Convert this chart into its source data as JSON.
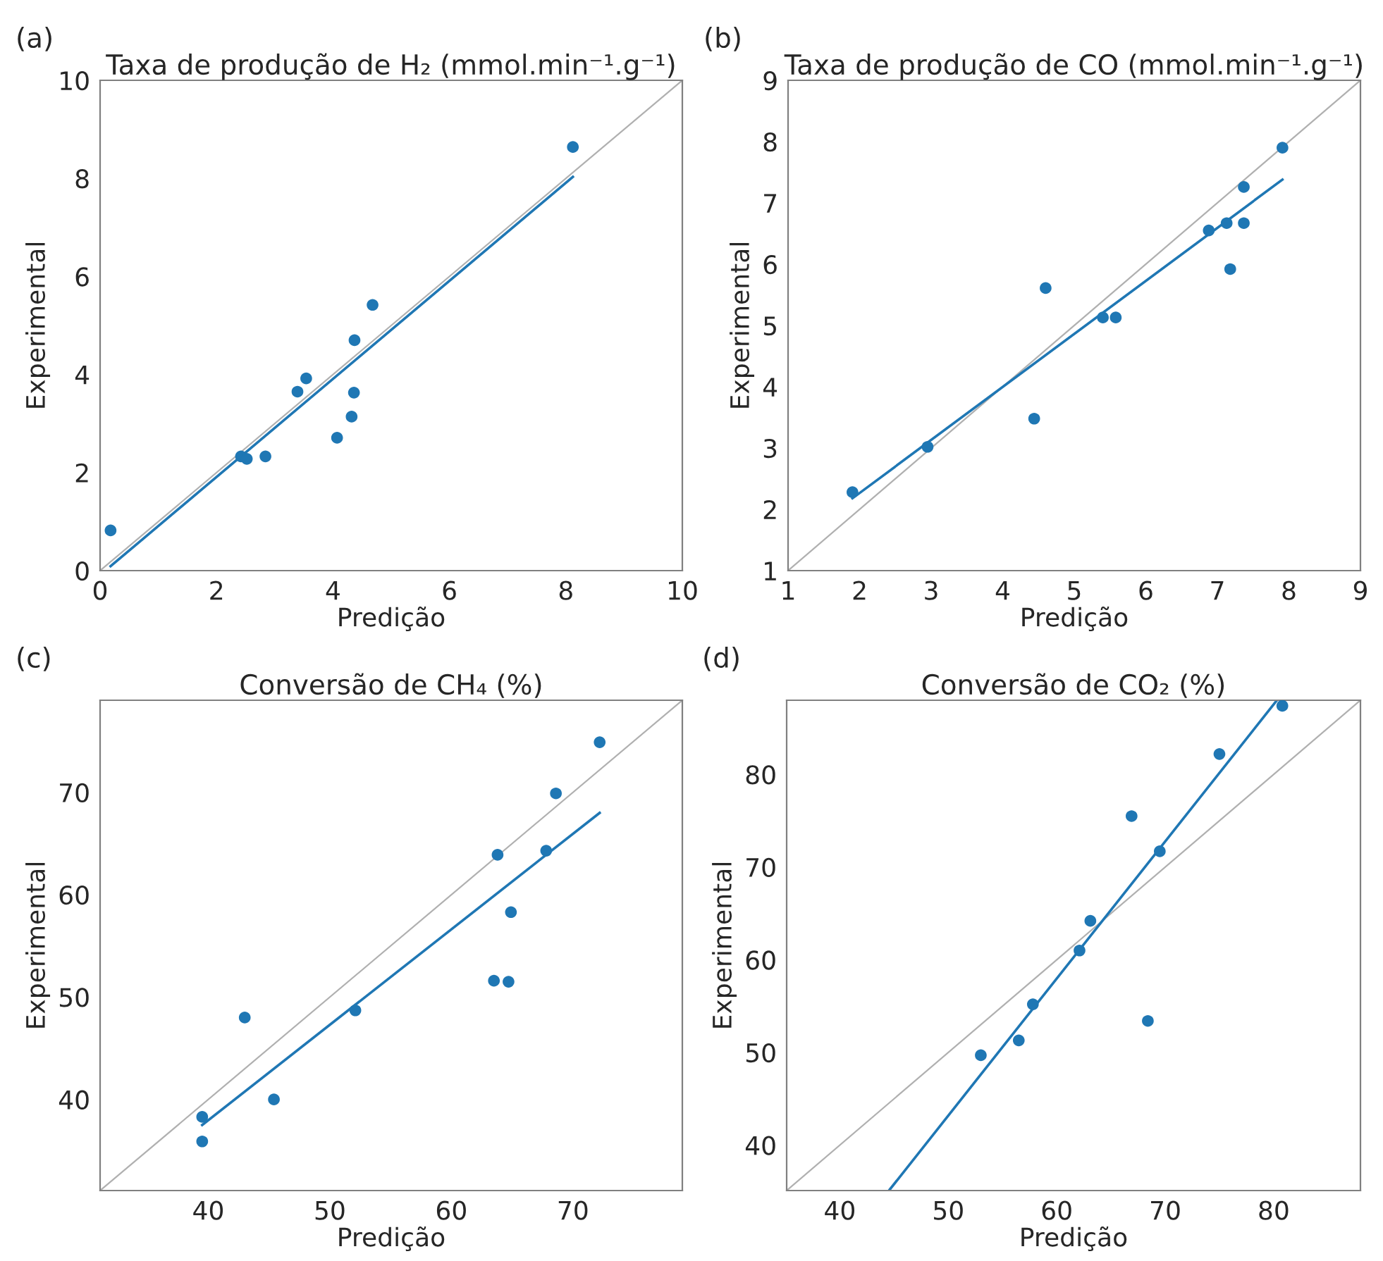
{
  "chart_data": [
    {
      "type": "scatter",
      "title": "Taxa de produção de H₂ (mmol.min⁻¹.g⁻¹)",
      "xlabel": "Predição",
      "ylabel": "Experimental",
      "annotations": [
        "(a)"
      ],
      "xlim": [
        0,
        10
      ],
      "ylim": [
        0,
        10
      ],
      "xticks": [
        0,
        2,
        4,
        6,
        8,
        10
      ],
      "yticks": [
        0,
        2,
        4,
        6,
        8,
        10
      ],
      "grid": false,
      "legend": false,
      "series": [
        {
          "type": "line",
          "color": "#b0b0b0",
          "marker": "none",
          "x": [
            0,
            10
          ],
          "values": [
            0,
            10
          ]
        },
        {
          "type": "line",
          "color": "#1f77b4",
          "marker": "none",
          "x": [
            0.18,
            8.12
          ],
          "values": [
            0.09,
            8.03
          ]
        },
        {
          "color": "#1f77b4",
          "marker": "circle",
          "x": [
            0.18,
            2.42,
            2.52,
            2.84,
            3.39,
            3.54,
            4.07,
            4.32,
            4.36,
            4.37,
            4.68,
            8.12
          ],
          "values": [
            0.82,
            2.33,
            2.28,
            2.33,
            3.65,
            3.92,
            2.71,
            3.14,
            3.63,
            4.7,
            5.42,
            8.64
          ]
        }
      ]
    },
    {
      "type": "scatter",
      "title": "Taxa de produção de CO (mmol.min⁻¹.g⁻¹)",
      "xlabel": "Predição",
      "ylabel": "Experimental",
      "annotations": [
        "(b)"
      ],
      "xlim": [
        1,
        9
      ],
      "ylim": [
        1,
        9
      ],
      "xticks": [
        1,
        2,
        3,
        4,
        5,
        6,
        7,
        8,
        9
      ],
      "yticks": [
        1,
        2,
        3,
        4,
        5,
        6,
        7,
        8,
        9
      ],
      "grid": false,
      "legend": false,
      "series": [
        {
          "type": "line",
          "color": "#b0b0b0",
          "marker": "none",
          "x": [
            1,
            9
          ],
          "values": [
            1,
            9
          ]
        },
        {
          "type": "line",
          "color": "#1f77b4",
          "marker": "none",
          "x": [
            1.9,
            7.91
          ],
          "values": [
            2.18,
            7.38
          ]
        },
        {
          "color": "#1f77b4",
          "marker": "circle",
          "x": [
            1.9,
            2.95,
            4.44,
            4.6,
            5.4,
            5.58,
            6.88,
            7.13,
            7.18,
            7.37,
            7.37,
            7.91
          ],
          "values": [
            2.28,
            3.02,
            3.48,
            5.61,
            5.13,
            5.13,
            6.55,
            6.67,
            5.92,
            6.67,
            7.26,
            7.9
          ]
        }
      ]
    },
    {
      "type": "scatter",
      "title": "Conversão de CH₄ (%)",
      "xlabel": "Predição",
      "ylabel": "Experimental",
      "annotations": [
        "(c)"
      ],
      "xlim": [
        31.1,
        79.0
      ],
      "ylim": [
        31.1,
        79.0
      ],
      "xticks": [
        40,
        50,
        60,
        70
      ],
      "yticks": [
        40,
        50,
        60,
        70
      ],
      "grid": false,
      "legend": false,
      "series": [
        {
          "type": "line",
          "color": "#b0b0b0",
          "marker": "none",
          "x": [
            31.1,
            79.0
          ],
          "values": [
            31.1,
            79.0
          ]
        },
        {
          "type": "line",
          "color": "#1f77b4",
          "marker": "none",
          "x": [
            39.5,
            72.2
          ],
          "values": [
            37.5,
            68.0
          ]
        },
        {
          "color": "#1f77b4",
          "marker": "circle",
          "x": [
            39.5,
            39.5,
            43.0,
            45.4,
            52.1,
            63.5,
            64.7,
            63.8,
            64.9,
            67.8,
            68.6,
            72.2
          ],
          "values": [
            38.3,
            35.9,
            48.0,
            40.0,
            48.7,
            51.6,
            51.5,
            63.9,
            58.3,
            64.3,
            69.9,
            74.9
          ]
        }
      ]
    },
    {
      "type": "scatter",
      "title": "Conversão de CO₂ (%)",
      "xlabel": "Predição",
      "ylabel": "Experimental",
      "annotations": [
        "(d)"
      ],
      "xlim": [
        35.1,
        88.0
      ],
      "ylim": [
        35.1,
        88.0
      ],
      "xticks": [
        40,
        50,
        60,
        70,
        80
      ],
      "yticks": [
        40,
        50,
        60,
        70,
        80
      ],
      "grid": false,
      "legend": false,
      "series": [
        {
          "type": "line",
          "color": "#b0b0b0",
          "marker": "none",
          "x": [
            35.1,
            88.0
          ],
          "values": [
            35.1,
            88.0
          ]
        },
        {
          "type": "line",
          "color": "#1f77b4",
          "marker": "none",
          "x": [
            44.6,
            80.3
          ],
          "values": [
            35.2,
            88.0
          ]
        },
        {
          "color": "#1f77b4",
          "marker": "circle",
          "x": [
            53.0,
            56.5,
            57.8,
            62.1,
            63.1,
            66.9,
            68.4,
            69.5,
            75.0,
            80.8
          ],
          "values": [
            49.7,
            51.3,
            55.2,
            61.0,
            64.2,
            75.5,
            53.4,
            71.7,
            82.2,
            87.4
          ]
        }
      ]
    }
  ]
}
